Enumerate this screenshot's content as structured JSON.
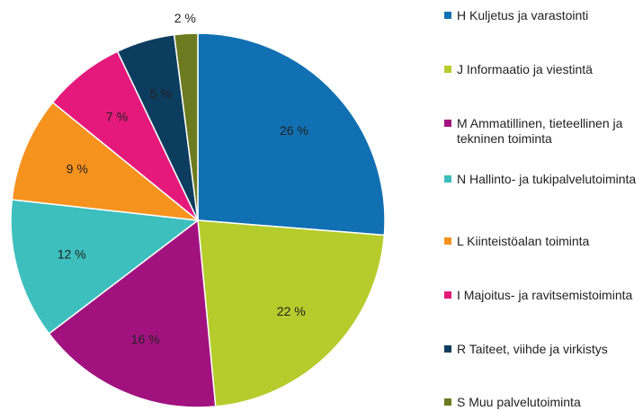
{
  "chart_data": {
    "type": "pie",
    "categories": [
      "H Kuljetus ja varastointi",
      "J Informaatio ja viestintä",
      "M Ammatillinen, tieteellinen ja tekninen toiminta",
      "N Hallinto- ja tukipalvelutoiminta",
      "L Kiinteistöalan toiminta",
      "I Majoitus- ja ravitsemistoiminta",
      "R Taiteet, viihde ja virkistys",
      "S Muu palvelutoiminta"
    ],
    "values": [
      26,
      22,
      16,
      12,
      9,
      7,
      5,
      2
    ],
    "value_labels": [
      "26 %",
      "22 %",
      "16 %",
      "12 %",
      "9 %",
      "7 %",
      "5 %",
      "2 %"
    ],
    "colors": [
      "#1170b2",
      "#b6cc2c",
      "#a1127f",
      "#3dbfbe",
      "#f6921e",
      "#e4197b",
      "#0c3d5e",
      "#6d7b20"
    ]
  }
}
